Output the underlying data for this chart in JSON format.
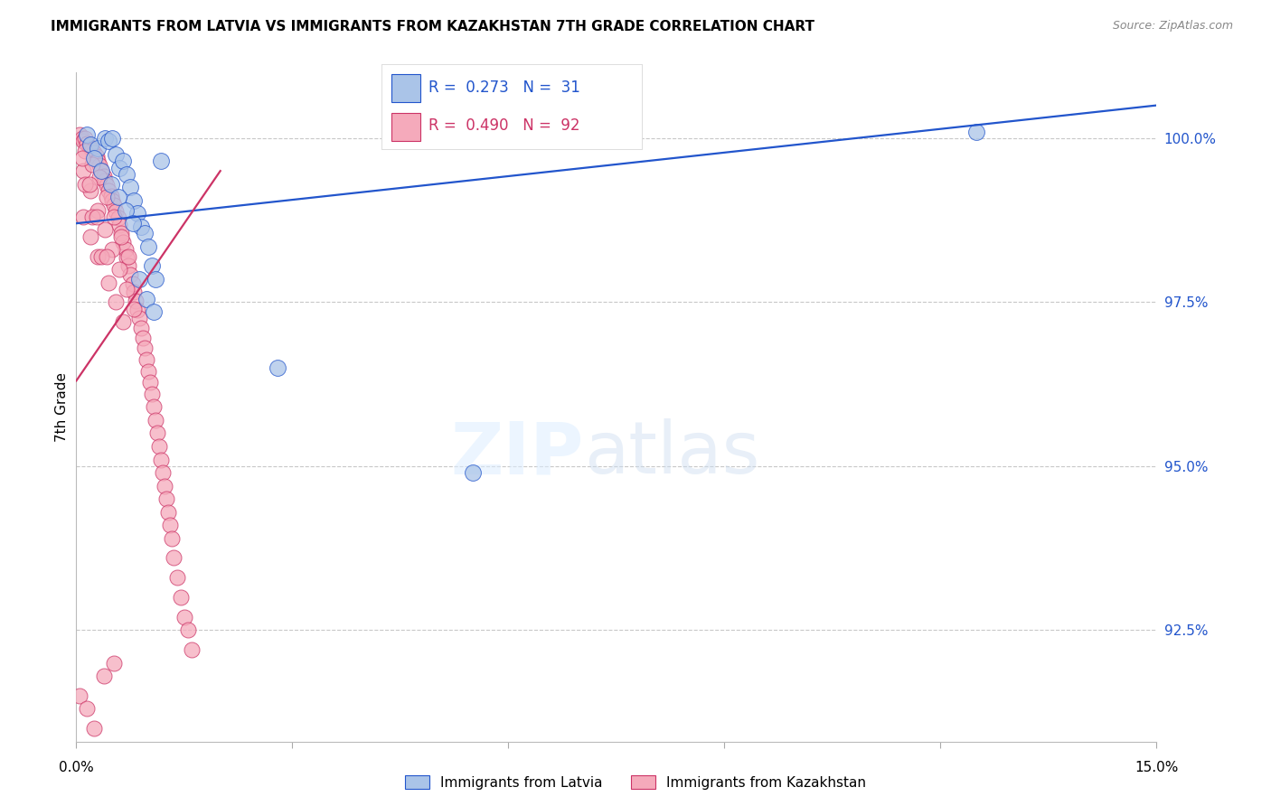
{
  "title": "IMMIGRANTS FROM LATVIA VS IMMIGRANTS FROM KAZAKHSTAN 7TH GRADE CORRELATION CHART",
  "source": "Source: ZipAtlas.com",
  "ylabel": "7th Grade",
  "ytick_values": [
    92.5,
    95.0,
    97.5,
    100.0
  ],
  "xmin": 0.0,
  "xmax": 15.0,
  "ymin": 90.8,
  "ymax": 101.0,
  "blue_color": "#aac4e8",
  "pink_color": "#f5aabb",
  "line_blue_color": "#2255cc",
  "line_pink_color": "#cc3366",
  "blue_trend_x0": 0.0,
  "blue_trend_y0": 98.7,
  "blue_trend_x1": 15.0,
  "blue_trend_y1": 100.5,
  "pink_trend_x0": 0.0,
  "pink_trend_y0": 96.3,
  "pink_trend_x1": 2.5,
  "pink_trend_y1": 100.3,
  "blue_scatter_x": [
    0.15,
    0.2,
    0.3,
    0.4,
    0.45,
    0.5,
    0.55,
    0.6,
    0.65,
    0.7,
    0.75,
    0.8,
    0.85,
    0.9,
    0.95,
    1.0,
    1.05,
    1.1,
    0.25,
    0.35,
    0.48,
    0.58,
    0.68,
    0.78,
    0.88,
    0.98,
    1.08,
    1.18,
    2.8,
    12.5,
    5.5
  ],
  "blue_scatter_y": [
    100.05,
    99.9,
    99.85,
    100.0,
    99.95,
    100.0,
    99.75,
    99.55,
    99.65,
    99.45,
    99.25,
    99.05,
    98.85,
    98.65,
    98.55,
    98.35,
    98.05,
    97.85,
    99.7,
    99.5,
    99.3,
    99.1,
    98.9,
    98.7,
    97.85,
    97.55,
    97.35,
    99.65,
    96.5,
    100.1,
    94.9
  ],
  "pink_scatter_x": [
    0.05,
    0.08,
    0.1,
    0.12,
    0.15,
    0.18,
    0.2,
    0.22,
    0.25,
    0.28,
    0.3,
    0.32,
    0.35,
    0.38,
    0.4,
    0.42,
    0.45,
    0.48,
    0.5,
    0.52,
    0.55,
    0.58,
    0.6,
    0.62,
    0.65,
    0.68,
    0.7,
    0.72,
    0.75,
    0.78,
    0.8,
    0.82,
    0.85,
    0.88,
    0.9,
    0.92,
    0.95,
    0.98,
    1.0,
    1.02,
    1.05,
    1.08,
    1.1,
    1.12,
    1.15,
    1.18,
    1.2,
    1.22,
    1.25,
    1.28,
    1.3,
    1.32,
    1.35,
    1.4,
    1.45,
    1.5,
    1.55,
    1.6,
    0.1,
    0.2,
    0.3,
    0.4,
    0.5,
    0.6,
    0.7,
    0.8,
    0.12,
    0.22,
    0.32,
    0.42,
    0.52,
    0.62,
    0.72,
    0.1,
    0.2,
    0.3,
    0.45,
    0.55,
    0.65,
    0.12,
    0.22,
    0.35,
    0.08,
    0.18,
    0.28,
    0.42,
    0.05,
    0.15,
    0.25,
    0.38,
    0.52
  ],
  "pink_scatter_y": [
    100.05,
    100.0,
    99.95,
    100.0,
    99.92,
    99.88,
    99.85,
    99.82,
    99.78,
    99.72,
    99.65,
    99.58,
    99.5,
    99.42,
    99.35,
    99.28,
    99.2,
    99.12,
    99.05,
    98.98,
    98.88,
    98.78,
    98.68,
    98.55,
    98.42,
    98.3,
    98.18,
    98.05,
    97.92,
    97.78,
    97.65,
    97.52,
    97.38,
    97.25,
    97.1,
    96.95,
    96.8,
    96.62,
    96.45,
    96.28,
    96.1,
    95.9,
    95.7,
    95.5,
    95.3,
    95.1,
    94.9,
    94.7,
    94.5,
    94.3,
    94.1,
    93.9,
    93.6,
    93.3,
    93.0,
    92.7,
    92.5,
    92.2,
    99.5,
    99.2,
    98.9,
    98.6,
    98.3,
    98.0,
    97.7,
    97.4,
    99.8,
    99.6,
    99.4,
    99.1,
    98.8,
    98.5,
    98.2,
    98.8,
    98.5,
    98.2,
    97.8,
    97.5,
    97.2,
    99.3,
    98.8,
    98.2,
    99.7,
    99.3,
    98.8,
    98.2,
    91.5,
    91.3,
    91.0,
    91.8,
    92.0
  ]
}
